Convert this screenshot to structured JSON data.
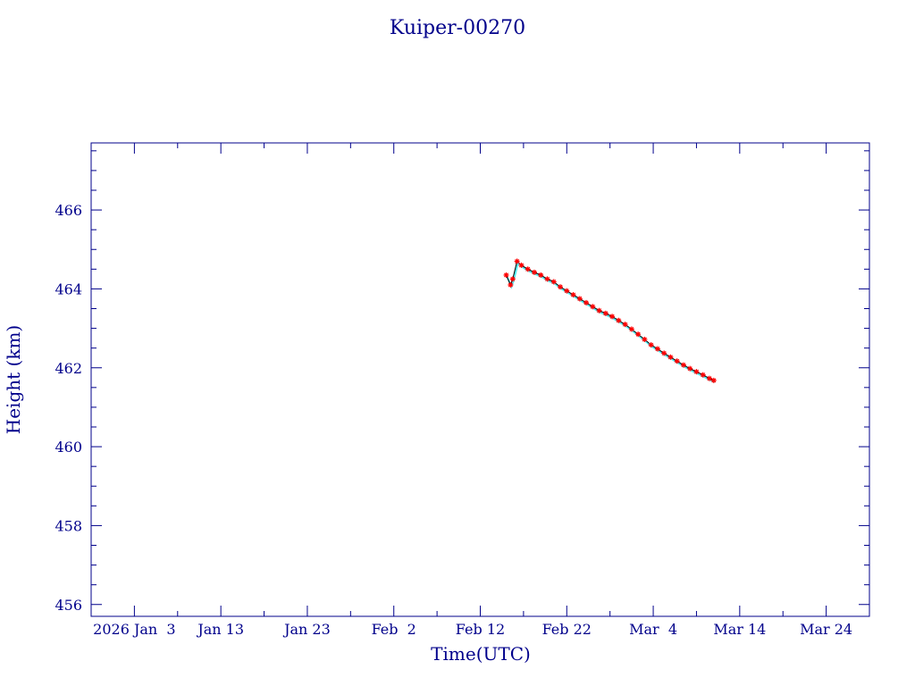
{
  "chart_data": {
    "type": "scatter",
    "title": "Kuiper-00270",
    "xlabel": "Time(UTC)",
    "ylabel": "Height (km)",
    "xlim": [
      "2025-12-29",
      "2026-03-29"
    ],
    "ylim": [
      455.7,
      467.7
    ],
    "grid": false,
    "x_ticks": [
      {
        "date": "2026-01-03",
        "label": "2026 Jan  3"
      },
      {
        "date": "2026-01-13",
        "label": "Jan 13"
      },
      {
        "date": "2026-01-23",
        "label": "Jan 23"
      },
      {
        "date": "2026-02-02",
        "label": "Feb  2"
      },
      {
        "date": "2026-02-12",
        "label": "Feb 12"
      },
      {
        "date": "2026-02-22",
        "label": "Feb 22"
      },
      {
        "date": "2026-03-04",
        "label": "Mar  4"
      },
      {
        "date": "2026-03-14",
        "label": "Mar 14"
      },
      {
        "date": "2026-03-24",
        "label": "Mar 24"
      }
    ],
    "y_ticks": [
      456,
      458,
      460,
      462,
      464,
      466
    ],
    "colors": {
      "axis": "#00008b",
      "line": "#000000",
      "points": "#ff0000",
      "secondary": "#00e5ee"
    },
    "series": [
      {
        "marker": "asterisk",
        "color": "#ff0000",
        "x": [
          "2026-02-15 00:00",
          "2026-02-15 12:00",
          "2026-02-15 18:00",
          "2026-02-16 06:00",
          "2026-02-16 18:00",
          "2026-02-17 12:00",
          "2026-02-18 06:00",
          "2026-02-19 00:00",
          "2026-02-19 18:00",
          "2026-02-20 12:00",
          "2026-02-21 06:00",
          "2026-02-22 00:00",
          "2026-02-22 18:00",
          "2026-02-23 12:00",
          "2026-02-24 06:00",
          "2026-02-25 00:00",
          "2026-02-25 18:00",
          "2026-02-26 12:00",
          "2026-02-27 06:00",
          "2026-02-28 00:00",
          "2026-02-28 18:00",
          "2026-03-01 12:00",
          "2026-03-02 06:00",
          "2026-03-03 00:00",
          "2026-03-03 18:00",
          "2026-03-04 12:00",
          "2026-03-05 06:00",
          "2026-03-06 00:00",
          "2026-03-06 18:00",
          "2026-03-07 12:00",
          "2026-03-08 06:00",
          "2026-03-09 00:00",
          "2026-03-09 18:00",
          "2026-03-10 12:00",
          "2026-03-11 00:00"
        ],
        "y": [
          464.35,
          464.1,
          464.25,
          464.7,
          464.6,
          464.5,
          464.42,
          464.35,
          464.25,
          464.18,
          464.05,
          463.95,
          463.85,
          463.75,
          463.65,
          463.55,
          463.45,
          463.38,
          463.3,
          463.2,
          463.1,
          462.98,
          462.85,
          462.72,
          462.58,
          462.48,
          462.37,
          462.27,
          462.17,
          462.07,
          461.98,
          461.9,
          461.82,
          461.73,
          461.68
        ]
      }
    ]
  }
}
